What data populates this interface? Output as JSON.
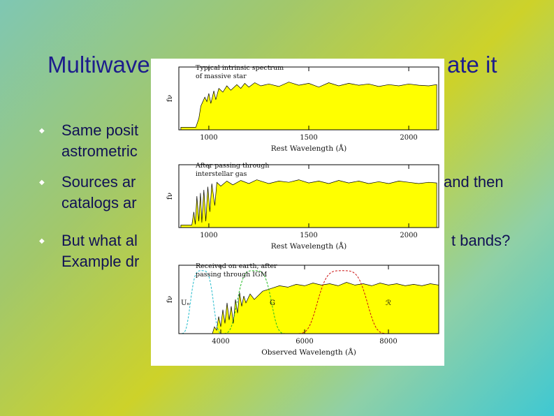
{
  "slide": {
    "title_left": "Multiwave",
    "title_right": "ate it",
    "bullets": [
      {
        "lines": [
          "Same posit",
          "astrometric"
        ]
      },
      {
        "lines": [
          "Sources ar",
          "catalogs ar"
        ],
        "tail": "and then"
      },
      {
        "lines": [
          "But what al",
          "Example dr"
        ],
        "tail": "t bands?"
      }
    ]
  },
  "chart_data": [
    {
      "type": "area",
      "annotation": [
        "Typical intrinsic spectrum",
        "of massive star"
      ],
      "ylabel": "fν",
      "xlabel": "Rest Wavelength (Å)",
      "xticks": [
        1000,
        1500,
        2000
      ],
      "xlim": [
        850,
        2150
      ],
      "ylim": [
        0,
        1
      ],
      "fill_color": "#ffff00",
      "series": {
        "x": [
          860,
          935,
          950,
          960,
          980,
          990,
          1000,
          1010,
          1025,
          1035,
          1050,
          1070,
          1090,
          1110,
          1140,
          1160,
          1180,
          1200,
          1230,
          1260,
          1300,
          1350,
          1400,
          1450,
          1500,
          1550,
          1600,
          1650,
          1700,
          1750,
          1800,
          1850,
          1900,
          1950,
          2000,
          2050,
          2100,
          2140
        ],
        "y": [
          0.04,
          0.04,
          0.18,
          0.38,
          0.52,
          0.45,
          0.58,
          0.42,
          0.62,
          0.48,
          0.66,
          0.6,
          0.7,
          0.63,
          0.72,
          0.66,
          0.74,
          0.68,
          0.75,
          0.7,
          0.73,
          0.69,
          0.76,
          0.71,
          0.74,
          0.68,
          0.75,
          0.7,
          0.74,
          0.71,
          0.73,
          0.69,
          0.72,
          0.7,
          0.73,
          0.71,
          0.7,
          0.72
        ]
      }
    },
    {
      "type": "area",
      "annotation": [
        "After passing through",
        "interstellar gas"
      ],
      "ylabel": "fν",
      "xlabel": "Rest Wavelength (Å)",
      "xticks": [
        1000,
        1500,
        2000
      ],
      "xlim": [
        850,
        2150
      ],
      "ylim": [
        0,
        1
      ],
      "fill_color": "#ffff00",
      "series": {
        "x": [
          860,
          915,
          925,
          932,
          940,
          950,
          958,
          965,
          975,
          985,
          995,
          1005,
          1015,
          1030,
          1040,
          1060,
          1090,
          1120,
          1160,
          1200,
          1240,
          1300,
          1350,
          1400,
          1450,
          1500,
          1550,
          1600,
          1650,
          1700,
          1750,
          1800,
          1850,
          1900,
          1950,
          2000,
          2050,
          2100,
          2140
        ],
        "y": [
          0.04,
          0.04,
          0.25,
          0.05,
          0.5,
          0.1,
          0.55,
          0.08,
          0.6,
          0.1,
          0.65,
          0.25,
          0.7,
          0.35,
          0.72,
          0.66,
          0.74,
          0.68,
          0.75,
          0.7,
          0.76,
          0.7,
          0.74,
          0.72,
          0.76,
          0.71,
          0.74,
          0.7,
          0.75,
          0.71,
          0.74,
          0.7,
          0.73,
          0.7,
          0.74,
          0.72,
          0.7,
          0.72,
          0.71
        ]
      }
    },
    {
      "type": "area",
      "annotation": [
        "Received on earth, after",
        "passing through IGM"
      ],
      "ylabel": "fν",
      "xlabel": "Observed Wavelength (Å)",
      "xticks": [
        4000,
        6000,
        8000
      ],
      "xlim": [
        3000,
        9200
      ],
      "ylim": [
        0,
        1
      ],
      "fill_color": "#ffff00",
      "filters": [
        {
          "name": "Uₙ",
          "color": "#22bbcc",
          "center": 3550,
          "width": 300
        },
        {
          "name": "G",
          "color": "#22bb22",
          "center": 4800,
          "width": 450
        },
        {
          "name": "ℛ",
          "color": "#cc1111",
          "center": 6900,
          "width": 650
        }
      ],
      "series": {
        "x": [
          3000,
          3700,
          3800,
          3850,
          3900,
          3950,
          4000,
          4050,
          4100,
          4150,
          4200,
          4250,
          4300,
          4350,
          4400,
          4450,
          4500,
          4550,
          4600,
          4700,
          4800,
          5000,
          5200,
          5400,
          5600,
          5800,
          6000,
          6200,
          6400,
          6600,
          6800,
          7000,
          7200,
          7400,
          7600,
          7800,
          8000,
          8200,
          8400,
          8600,
          8800,
          9000,
          9200
        ],
        "y": [
          0,
          0,
          0,
          0.1,
          0.05,
          0.25,
          0.1,
          0.35,
          0.15,
          0.45,
          0.2,
          0.4,
          0.15,
          0.5,
          0.3,
          0.6,
          0.4,
          0.55,
          0.45,
          0.58,
          0.5,
          0.62,
          0.66,
          0.7,
          0.68,
          0.72,
          0.7,
          0.74,
          0.71,
          0.73,
          0.7,
          0.75,
          0.71,
          0.73,
          0.7,
          0.74,
          0.71,
          0.73,
          0.7,
          0.72,
          0.7,
          0.73,
          0.71
        ]
      }
    }
  ]
}
